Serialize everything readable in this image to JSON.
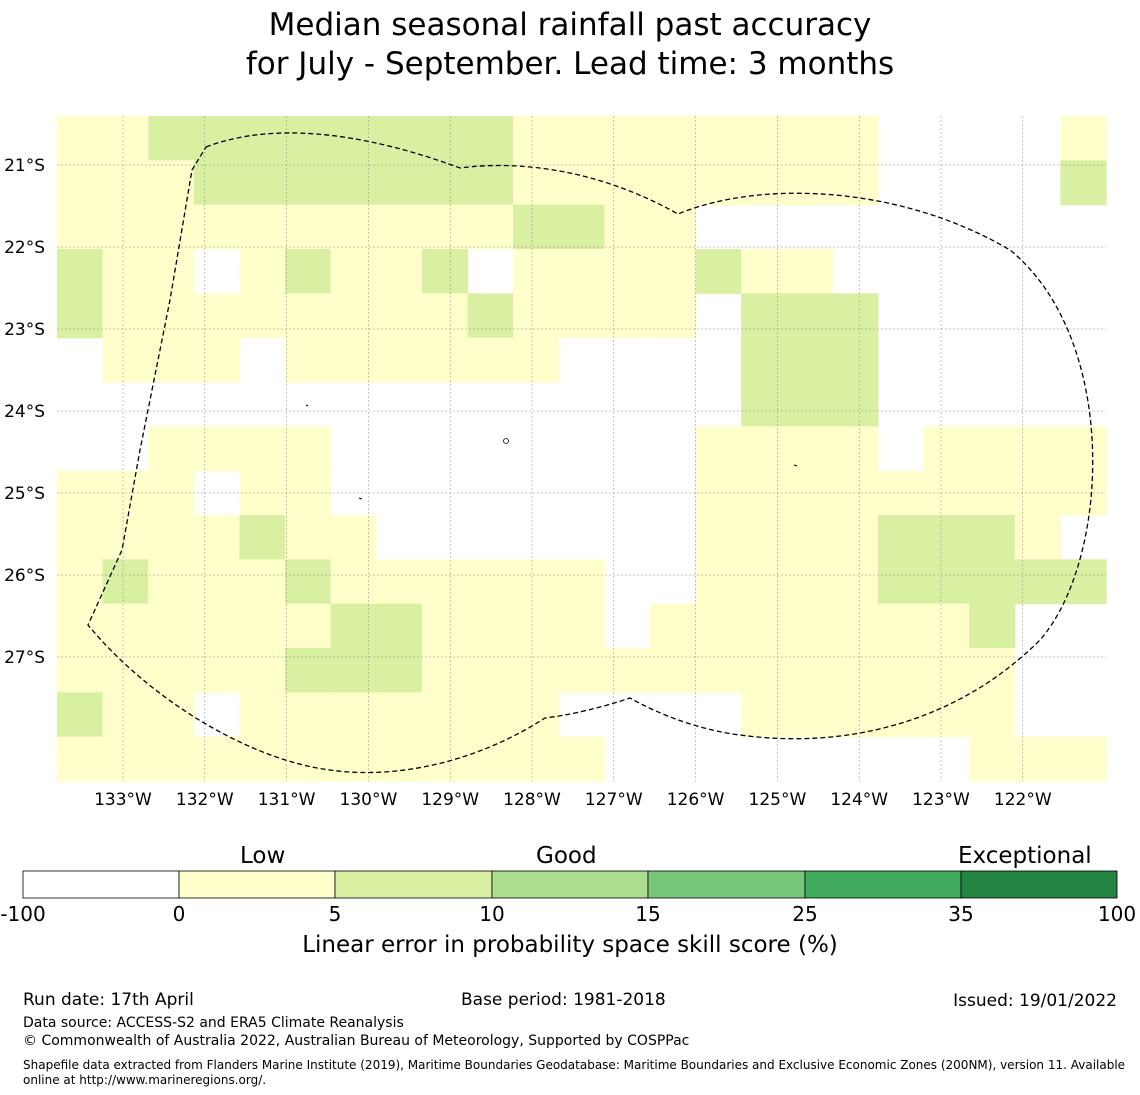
{
  "title_line1": "Median seasonal rainfall past accuracy",
  "title_line2": "for July - September. Lead time: 3 months",
  "map": {
    "lon_labels": [
      "133°W",
      "132°W",
      "131°W",
      "130°W",
      "129°W",
      "128°W",
      "127°W",
      "126°W",
      "125°W",
      "124°W",
      "123°W",
      "122°W"
    ],
    "lat_labels": [
      "21°S",
      "22°S",
      "23°S",
      "24°S",
      "25°S",
      "26°S",
      "27°S"
    ],
    "colors": [
      "#ffffff",
      "#ffffcc",
      "#d9f0a3",
      "#addd8e",
      "#78c679",
      "#41ab5d",
      "#238443"
    ]
  },
  "colorbar": {
    "category_labels": [
      "Low",
      "Good",
      "Exceptional"
    ],
    "ticks": [
      "-100",
      "0",
      "5",
      "10",
      "15",
      "25",
      "35",
      "100"
    ],
    "colors": [
      "#ffffff",
      "#ffffcc",
      "#d9f0a3",
      "#addd8e",
      "#78c679",
      "#41ab5d",
      "#238443"
    ],
    "title": "Linear error in probability space skill score (%)"
  },
  "footer": {
    "run_date": "Run date: 17th April",
    "base_period": "Base period: 1981-2018",
    "issued": "Issued: 19/01/2022",
    "data_source": "Data source: ACCESS-S2 and ERA5 Climate Reanalysis",
    "copyright": "© Commonwealth of Australia 2022, Australian Bureau of Meteorology, Supported by COSPPac",
    "shapefile": "Shapefile data extracted from Flanders Marine Institute (2019), Maritime Boundaries Geodatabase: Maritime Boundaries and Exclusive Economic Zones (200NM), version 11. Available online at http://www.marineregions.org/."
  }
}
